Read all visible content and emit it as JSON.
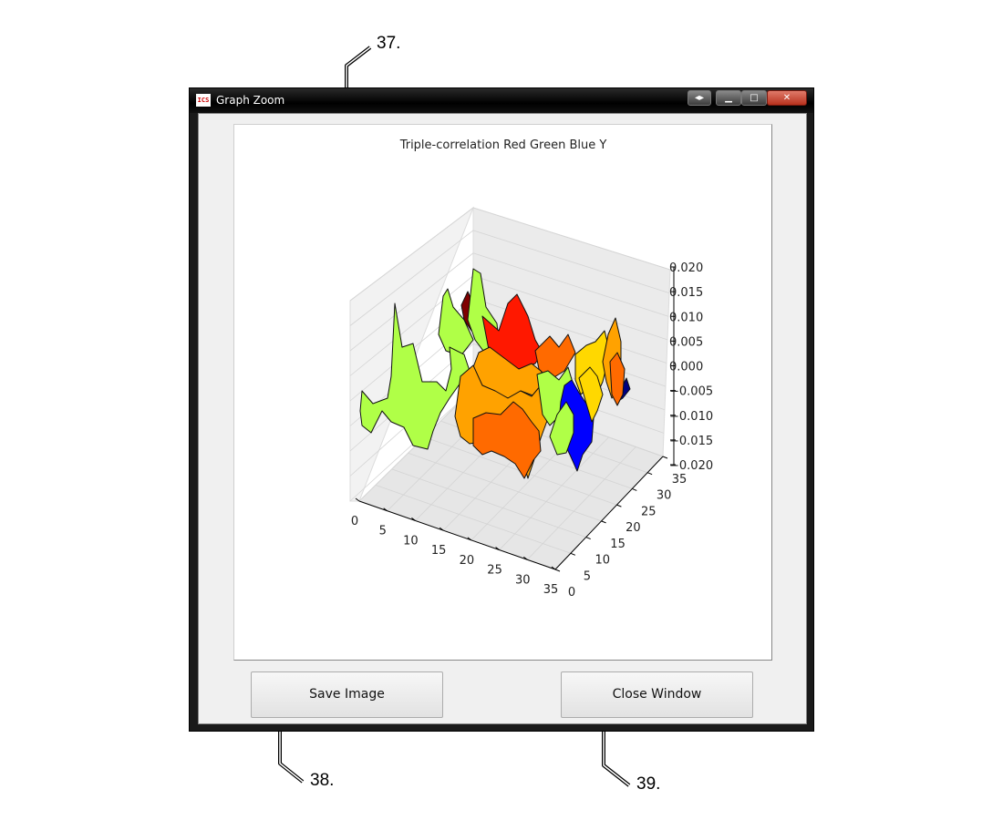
{
  "window": {
    "title": "Graph Zoom",
    "app_icon_text": "ICS",
    "controls": {
      "extra": "◂▸",
      "minimize": "▁",
      "maximize": "□",
      "close": "✕"
    }
  },
  "callouts": {
    "plot_area": "37.",
    "save_button": "38.",
    "close_button": "39."
  },
  "buttons": {
    "save_image": "Save Image",
    "close_window": "Close Window"
  },
  "chart_data": {
    "type": "surface3d",
    "title": "Triple-correlation Red Green Blue Y",
    "xlabel": "",
    "ylabel": "",
    "zlabel": "",
    "x_ticks": [
      "0",
      "5",
      "10",
      "15",
      "20",
      "25",
      "30",
      "35"
    ],
    "y_ticks": [
      "0",
      "5",
      "10",
      "15",
      "20",
      "25",
      "30",
      "35"
    ],
    "z_ticks": [
      "−0.020",
      "−0.015",
      "−0.010",
      "−0.005",
      "0.000",
      "0.005",
      "0.010",
      "0.015",
      "0.020"
    ],
    "xlim": [
      0,
      35
    ],
    "ylim": [
      0,
      35
    ],
    "zlim": [
      -0.02,
      0.02
    ],
    "colormap": [
      "#00007f",
      "#0000ff",
      "#ffd800",
      "#ffa200",
      "#ff6a00",
      "#ff1800",
      "#b0ff47",
      "#7f0000"
    ]
  }
}
